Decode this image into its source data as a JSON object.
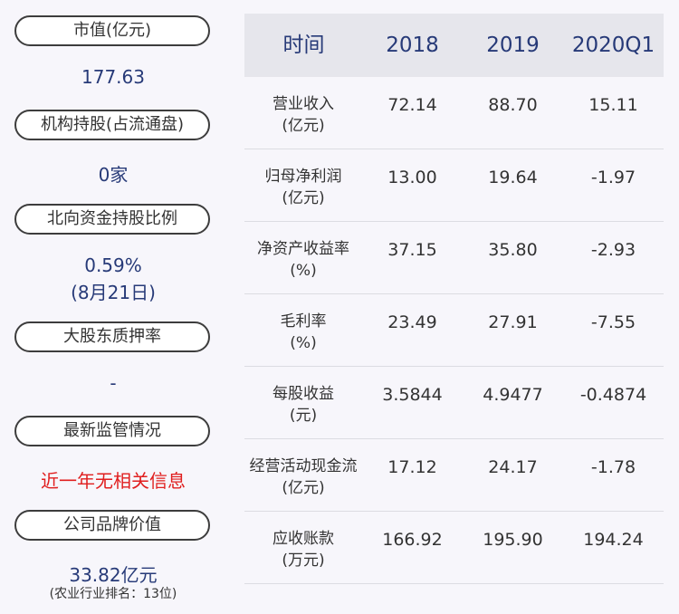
{
  "left": {
    "items": [
      {
        "label": "市值(亿元)",
        "value": "177.63"
      },
      {
        "label": "机构持股(占流通盘)",
        "value": "0家"
      },
      {
        "label": "北向资金持股比例",
        "value": "0.59%",
        "value2": "(8月21日)"
      },
      {
        "label": "大股东质押率",
        "value": "-"
      },
      {
        "label": "最新监管情况",
        "value": "近一年无相关信息"
      },
      {
        "label": "公司品牌价值",
        "value": "33.82亿元",
        "note": "(农业行业排名：13位)"
      }
    ]
  },
  "table": {
    "headers": [
      "时间",
      "2018",
      "2019",
      "2020Q1"
    ],
    "rows": [
      {
        "label1": "营业收入",
        "label2": "(亿元)",
        "values": [
          "72.14",
          "88.70",
          "15.11"
        ]
      },
      {
        "label1": "归母净利润",
        "label2": "(亿元)",
        "values": [
          "13.00",
          "19.64",
          "-1.97"
        ]
      },
      {
        "label1": "净资产收益率",
        "label2": "(%)",
        "values": [
          "37.15",
          "35.80",
          "-2.93"
        ]
      },
      {
        "label1": "毛利率",
        "label2": "(%)",
        "values": [
          "23.49",
          "27.91",
          "-7.55"
        ]
      },
      {
        "label1": "每股收益",
        "label2": "(元)",
        "values": [
          "3.5844",
          "4.9477",
          "-0.4874"
        ]
      },
      {
        "label1": "经营活动现金流",
        "label2": "(亿元)",
        "values": [
          "17.12",
          "24.17",
          "-1.78"
        ]
      },
      {
        "label1": "应收账款",
        "label2": "(万元)",
        "values": [
          "166.92",
          "195.90",
          "194.24"
        ]
      }
    ]
  }
}
